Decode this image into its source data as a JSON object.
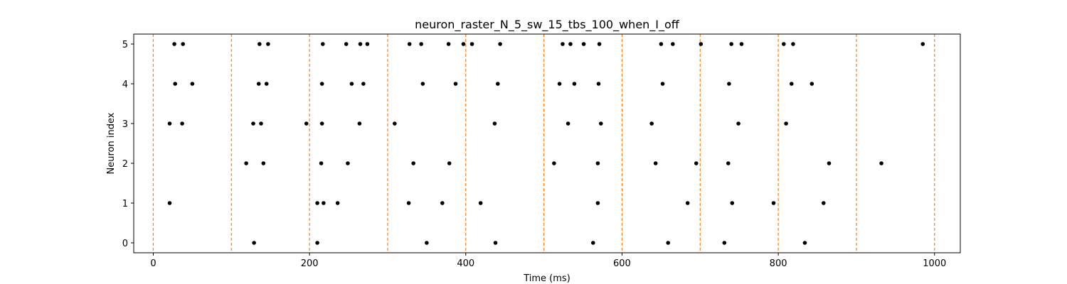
{
  "chart_data": {
    "type": "scatter",
    "title": "neuron_raster_N_5_sw_15_tbs_100_when_I_off",
    "xlabel": "Time (ms)",
    "ylabel": "Neuron index",
    "xlim": [
      -25,
      1033
    ],
    "ylim": [
      -0.25,
      5.25
    ],
    "xticks": [
      0,
      200,
      400,
      600,
      800,
      1000
    ],
    "yticks": [
      0,
      1,
      2,
      3,
      4,
      5
    ],
    "grid": false,
    "point_color": "#000000",
    "vline_color": "#ff7f0e",
    "vlines": [
      0,
      100,
      200,
      300,
      400,
      500,
      600,
      700,
      800,
      900,
      1000
    ],
    "series": [
      {
        "neuron": 0,
        "times": [
          129,
          210,
          350,
          438,
          563,
          659,
          731,
          834
        ]
      },
      {
        "neuron": 1,
        "times": [
          21,
          210,
          218,
          236,
          327,
          370,
          419,
          569,
          684,
          741,
          794,
          858
        ]
      },
      {
        "neuron": 2,
        "times": [
          119,
          141,
          215,
          249,
          333,
          379,
          513,
          569,
          643,
          695,
          736,
          865,
          932
        ]
      },
      {
        "neuron": 3,
        "times": [
          21,
          37,
          128,
          138,
          196,
          216,
          264,
          309,
          437,
          531,
          573,
          638,
          749,
          810
        ]
      },
      {
        "neuron": 4,
        "times": [
          28,
          50,
          135,
          145,
          216,
          254,
          269,
          345,
          387,
          441,
          520,
          539,
          570,
          652,
          737,
          817,
          843
        ]
      },
      {
        "neuron": 5,
        "times": [
          27,
          38,
          136,
          147,
          217,
          247,
          265,
          274,
          328,
          343,
          378,
          397,
          408,
          444,
          524,
          534,
          551,
          571,
          650,
          665,
          701,
          740,
          753,
          807,
          819,
          985
        ]
      }
    ]
  }
}
